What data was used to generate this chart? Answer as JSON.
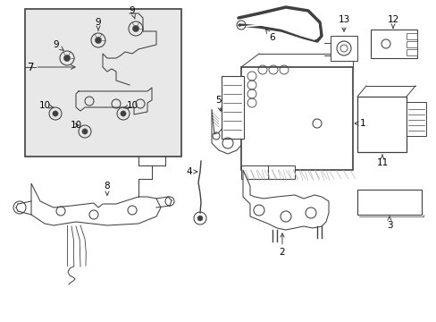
{
  "bg_color": "#ffffff",
  "line_color": "#404040",
  "label_color": "#000000",
  "inset_bg": "#e8e8e8",
  "font_size": 7.5,
  "lw": 0.75
}
